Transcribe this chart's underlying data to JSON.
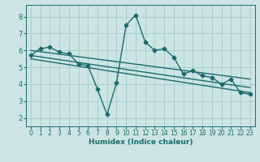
{
  "xlabel": "Humidex (Indice chaleur)",
  "ylabel": "",
  "background_color": "#cce5e3",
  "grid_color": "#aacfcc",
  "line_color": "#1a6b6b",
  "xlim": [
    -0.5,
    23.5
  ],
  "ylim": [
    1.5,
    8.7
  ],
  "xticks": [
    0,
    1,
    2,
    3,
    4,
    5,
    6,
    7,
    8,
    9,
    10,
    11,
    12,
    13,
    14,
    15,
    16,
    17,
    18,
    19,
    20,
    21,
    22,
    23
  ],
  "yticks": [
    2,
    3,
    4,
    5,
    6,
    7,
    8
  ],
  "series": [
    {
      "x": [
        0,
        1,
        2,
        3,
        4,
        5,
        6,
        7,
        8,
        9,
        10,
        11,
        12,
        13,
        14,
        15,
        16,
        17,
        18,
        19,
        20,
        21,
        22,
        23
      ],
      "y": [
        5.7,
        6.1,
        6.2,
        5.9,
        5.8,
        5.2,
        5.1,
        3.7,
        2.2,
        4.1,
        7.5,
        8.1,
        6.5,
        6.0,
        6.1,
        5.6,
        4.6,
        4.8,
        4.5,
        4.4,
        4.0,
        4.3,
        3.5,
        3.4
      ],
      "linewidth": 1.0,
      "markersize": 2.5
    },
    {
      "x": [
        0,
        23
      ],
      "y": [
        6.0,
        4.3
      ],
      "linewidth": 1.0,
      "markersize": 0
    },
    {
      "x": [
        0,
        23
      ],
      "y": [
        5.7,
        3.8
      ],
      "linewidth": 1.0,
      "markersize": 0
    },
    {
      "x": [
        0,
        23
      ],
      "y": [
        5.5,
        3.5
      ],
      "linewidth": 1.0,
      "markersize": 0
    }
  ]
}
